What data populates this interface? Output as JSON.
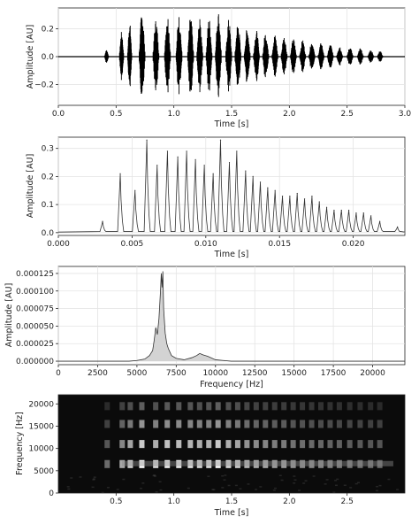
{
  "chart_data": [
    {
      "type": "line",
      "xlabel": "Time [s]",
      "ylabel": "Amplitude [AU]",
      "xlim": [
        0,
        3.0
      ],
      "ylim": [
        -0.35,
        0.35
      ],
      "xticks": [
        "0.0",
        "0.5",
        "1.0",
        "1.5",
        "2.0",
        "2.5",
        "3.0"
      ],
      "yticks": [
        "−0.2",
        "0.0",
        "0.2"
      ],
      "grid": true,
      "series": [
        {
          "syllable_onsets_s": [
            0.4,
            0.53,
            0.6,
            0.7,
            0.82,
            0.92,
            1.02,
            1.12,
            1.2,
            1.28,
            1.36,
            1.45,
            1.53,
            1.61,
            1.69,
            1.77,
            1.85,
            1.93,
            2.01,
            2.09,
            2.17,
            2.25,
            2.33,
            2.41,
            2.5,
            2.59,
            2.68,
            2.76
          ],
          "peak_amplitude": [
            0.05,
            0.18,
            0.25,
            0.33,
            0.27,
            0.31,
            0.3,
            0.29,
            0.27,
            0.28,
            0.33,
            0.27,
            0.25,
            0.21,
            0.19,
            0.18,
            0.16,
            0.15,
            0.13,
            0.12,
            0.11,
            0.1,
            0.09,
            0.08,
            0.07,
            0.06,
            0.05,
            0.04
          ]
        }
      ]
    },
    {
      "type": "line",
      "xlabel": "Time [s]",
      "ylabel": "Amplitude [AU]",
      "xlim": [
        0,
        0.0235
      ],
      "ylim": [
        -0.01,
        0.34
      ],
      "xticks": [
        "0.000",
        "0.005",
        "0.010",
        "0.015",
        "0.020"
      ],
      "yticks": [
        "0.0",
        "0.1",
        "0.2",
        "0.3"
      ],
      "grid": true,
      "series": [
        {
          "x": [
            0.003,
            0.0042,
            0.0052,
            0.006,
            0.0067,
            0.0074,
            0.0081,
            0.0087,
            0.0093,
            0.0099,
            0.0105,
            0.011,
            0.0116,
            0.0121,
            0.0127,
            0.0132,
            0.0137,
            0.0142,
            0.0147,
            0.0152,
            0.0157,
            0.0162,
            0.0167,
            0.0172,
            0.0177,
            0.0182,
            0.0187,
            0.0192,
            0.0197,
            0.0202,
            0.0207,
            0.0212,
            0.0218,
            0.023
          ],
          "y": [
            0.04,
            0.21,
            0.15,
            0.33,
            0.24,
            0.29,
            0.27,
            0.29,
            0.26,
            0.24,
            0.21,
            0.33,
            0.25,
            0.29,
            0.22,
            0.2,
            0.18,
            0.16,
            0.15,
            0.13,
            0.13,
            0.14,
            0.12,
            0.13,
            0.11,
            0.09,
            0.08,
            0.08,
            0.08,
            0.07,
            0.07,
            0.06,
            0.04,
            0.02
          ]
        }
      ]
    },
    {
      "type": "area",
      "xlabel": "Frequency [Hz]",
      "ylabel": "Amplitude [AU]",
      "xlim": [
        0,
        22050
      ],
      "ylim": [
        -5e-06,
        0.000135
      ],
      "xticks": [
        "0",
        "2500",
        "5000",
        "7500",
        "10000",
        "12500",
        "15000",
        "17500",
        "20000"
      ],
      "yticks": [
        "0.000000",
        "0.000025",
        "0.000050",
        "0.000075",
        "0.000100",
        "0.000125"
      ],
      "grid": true,
      "series": [
        {
          "x": [
            0,
            4500,
            5000,
            5500,
            5800,
            6000,
            6100,
            6200,
            6300,
            6400,
            6500,
            6550,
            6600,
            6650,
            6700,
            6800,
            6900,
            7000,
            7200,
            7500,
            8000,
            8500,
            8800,
            9000,
            9200,
            9500,
            10000,
            10500,
            11000,
            22050
          ],
          "y": [
            0,
            0,
            1e-06,
            3e-06,
            8e-06,
            1.5e-05,
            3e-05,
            4.8e-05,
            3.8e-05,
            6e-05,
            0.0001,
            0.000125,
            0.000105,
            0.000128,
            7.5e-05,
            4e-05,
            2.5e-05,
            1.8e-05,
            8e-06,
            4e-06,
            2e-06,
            5e-06,
            8e-06,
            1.1e-05,
            9e-06,
            7e-06,
            2e-06,
            1e-06,
            0,
            0
          ]
        }
      ]
    },
    {
      "type": "heatmap",
      "xlabel": "Time [s]",
      "ylabel": "Frequency [Hz]",
      "xlim": [
        0,
        3.0
      ],
      "ylim": [
        0,
        22050
      ],
      "xticks": [
        "0.5",
        "1.0",
        "1.5",
        "2.0",
        "2.5"
      ],
      "yticks": [
        "0",
        "5000",
        "10000",
        "15000",
        "20000"
      ],
      "colormap": "gray"
    }
  ],
  "colors": {
    "line": "#000000",
    "fill": "#d3d3d3",
    "grid": "#e4e4e4",
    "axes": "#222222"
  }
}
